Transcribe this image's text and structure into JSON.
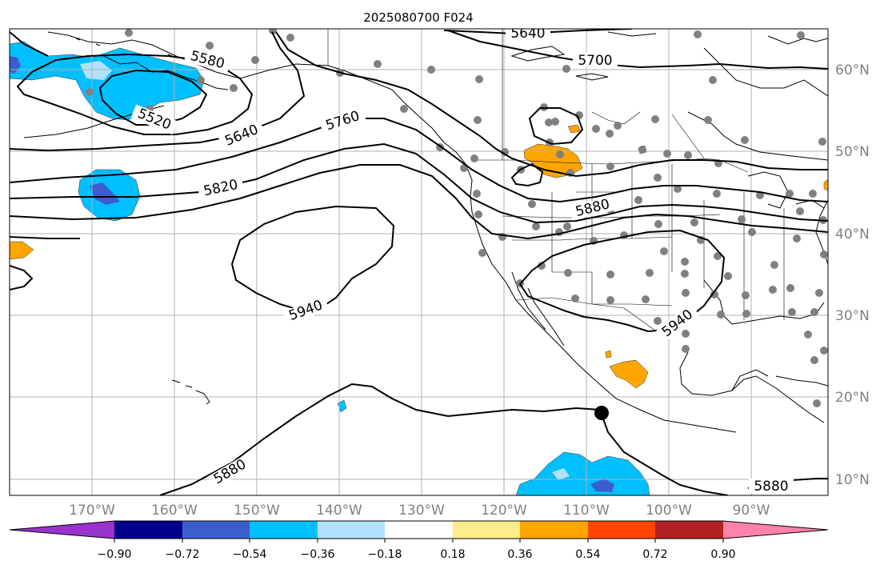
{
  "title": "2025080700 F024",
  "lon_labels": [
    "170°W",
    "160°W",
    "150°W",
    "140°W",
    "130°W",
    "120°W",
    "110°W",
    "100°W",
    "90°W"
  ],
  "lat_labels": [
    "60°N",
    "50°N",
    "40°N",
    "30°N",
    "20°N",
    "10°N"
  ],
  "contour_labels": [
    "5640",
    "5700",
    "5580",
    "5520",
    "5640",
    "5760",
    "5820",
    "5880",
    "5940",
    "5940",
    "5880",
    "5880"
  ],
  "colorbar": {
    "colors": [
      "#9a32cd",
      "#00008b",
      "#3a5fcd",
      "#00bfff",
      "#b0e2ff",
      "#ffffff",
      "#ffec8b",
      "#ffa500",
      "#ff4500",
      "#b22222",
      "#ff82ab"
    ],
    "tick_labels": [
      "−0.90",
      "−0.72",
      "−0.54",
      "−0.36",
      "−0.18",
      "0.18",
      "0.36",
      "0.54",
      "0.72",
      "0.90"
    ]
  },
  "colors": {
    "land_line": "#000000",
    "grid": "#b0b0b0",
    "station": "#808080",
    "label_gray": "#808080"
  }
}
